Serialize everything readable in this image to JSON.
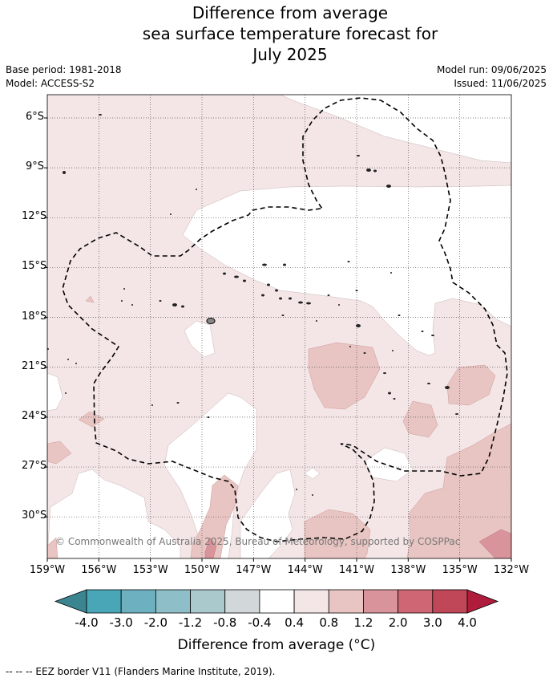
{
  "title_lines": [
    "Difference from average",
    "sea surface temperature forecast for",
    "July 2025"
  ],
  "base_period": "Base period: 1981-2018",
  "model": "Model: ACCESS-S2",
  "model_run": "Model run: 09/06/2025",
  "issued": "Issued: 11/06/2025",
  "copyright": "© Commonwealth of Australia 2025, Bureau of Meteorology, supported by COSPPac",
  "lat_labels": [
    "6°S",
    "9°S",
    "12°S",
    "15°S",
    "18°S",
    "21°S",
    "24°S",
    "27°S",
    "30°S"
  ],
  "lon_labels": [
    "159°W",
    "156°W",
    "153°W",
    "150°W",
    "147°W",
    "144°W",
    "141°W",
    "138°W",
    "135°W",
    "132°W"
  ],
  "colorbar": {
    "labels": [
      "-4.0",
      "-3.0",
      "-2.0",
      "-1.2",
      "-0.8",
      "-0.4",
      "0.4",
      "0.8",
      "1.2",
      "2.0",
      "3.0",
      "4.0"
    ],
    "colors": [
      "#3a8590",
      "#49a6b6",
      "#6db1c0",
      "#8ebfc8",
      "#a9c9cd",
      "#d2d8da",
      "#ffffff",
      "#f4e6e6",
      "#e8c5c2",
      "#d9939a",
      "#ce6673",
      "#c04758",
      "#b01d3c"
    ],
    "title": "Difference from average (°C)"
  },
  "footer": "--  --  -- EEZ border V11 (Flanders Marine Institute, 2019).",
  "map_data": {
    "lon_range": [
      -159,
      -132
    ],
    "lat_range": [
      -32.5,
      -4.6
    ],
    "fill_colors": {
      "band_0_4_0_8": "#f4e6e6",
      "band_0_8_1_2": "#e8c5c2",
      "band_1_2_2_0": "#d9939a",
      "neutral": "#ffffff"
    }
  }
}
